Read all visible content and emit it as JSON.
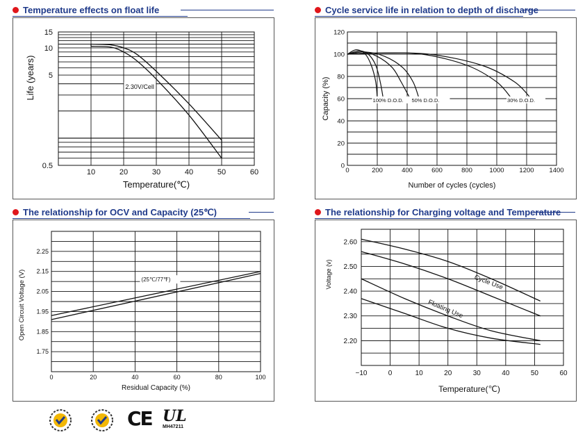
{
  "titles": {
    "c1": "Temperature effects on float life",
    "c2": "Cycle service life in relation to depth of discharge",
    "c3": "The relationship  for OCV and Capacity",
    "c3_suffix": "(25℃)",
    "c4": "The relationship for Charging voltage and Temperature"
  },
  "colors": {
    "title": "#1f3a8a",
    "bullet": "#e0161b",
    "grid": "#111111"
  },
  "chart_data": [
    {
      "type": "line",
      "title": "Temperature effects on float life",
      "xlabel": "Temperature(℃)",
      "ylabel": "Life (years)",
      "xlim": [
        0,
        60
      ],
      "ylim": [
        0.5,
        15
      ],
      "yscale": "log",
      "x_ticks": [
        "10",
        "20",
        "30",
        "40",
        "50",
        "60"
      ],
      "y_ticks": [
        "15",
        "10",
        "5",
        "0.5"
      ],
      "annotation": "2.30V/Cell",
      "series": [
        {
          "x": [
            10,
            16,
            20,
            24,
            30,
            40,
            50
          ],
          "y": [
            11.0,
            10.8,
            10.0,
            8.5,
            5.5,
            2.4,
            0.95
          ]
        },
        {
          "x": [
            10,
            16,
            20,
            24,
            30,
            40,
            50
          ],
          "y": [
            10.4,
            10.2,
            9.0,
            7.2,
            4.5,
            1.8,
            0.6
          ]
        }
      ]
    },
    {
      "type": "line",
      "title": "Cycle service life in relation to depth of discharge",
      "xlabel": "Number of cycles (cycles)",
      "ylabel": "Capacity (%)",
      "xlim": [
        0,
        1400
      ],
      "ylim": [
        0,
        120
      ],
      "x_ticks": [
        "0",
        "200",
        "400",
        "600",
        "800",
        "1000",
        "1200",
        "1400"
      ],
      "y_ticks": [
        "0",
        "20",
        "40",
        "60",
        "80",
        "100",
        "120"
      ],
      "annotations": [
        "100% D.O.D.",
        "50% D.O.D.",
        "30% D.O.D."
      ],
      "series": [
        {
          "x": [
            0,
            60,
            120,
            160,
            190,
            200
          ],
          "y": [
            100,
            104,
            100,
            90,
            75,
            60
          ]
        },
        {
          "x": [
            0,
            80,
            140,
            190,
            220,
            240
          ],
          "y": [
            100,
            103,
            100,
            90,
            75,
            60
          ]
        },
        {
          "x": [
            0,
            100,
            200,
            300,
            360,
            420
          ],
          "y": [
            100,
            102,
            98,
            88,
            75,
            60
          ]
        },
        {
          "x": [
            0,
            120,
            250,
            370,
            440,
            480
          ],
          "y": [
            100,
            102,
            98,
            88,
            75,
            60
          ]
        },
        {
          "x": [
            0,
            200,
            500,
            800,
            1000,
            1100
          ],
          "y": [
            100,
            101,
            100,
            90,
            75,
            60
          ]
        },
        {
          "x": [
            0,
            200,
            550,
            900,
            1120,
            1230
          ],
          "y": [
            100,
            101,
            100,
            90,
            75,
            60
          ]
        }
      ]
    },
    {
      "type": "line",
      "title": "The relationship  for OCV and Capacity (25℃)",
      "xlabel": "Residual Capacity (%)",
      "ylabel": "Open Circuit Voltage (V)",
      "xlim": [
        0,
        100
      ],
      "ylim": [
        1.65,
        2.35
      ],
      "x_ticks": [
        "0",
        "20",
        "40",
        "60",
        "80",
        "100"
      ],
      "y_ticks": [
        "1.75",
        "1.85",
        "1.95",
        "2.05",
        "2.15",
        "2.25"
      ],
      "annotation": "(25℃/77℉)",
      "series": [
        {
          "x": [
            0,
            100
          ],
          "y": [
            1.93,
            2.15
          ]
        },
        {
          "x": [
            0,
            100
          ],
          "y": [
            1.91,
            2.14
          ]
        }
      ]
    },
    {
      "type": "line",
      "title": "The relationship for Charging voltage and Temperature",
      "xlabel": "Temperature(℃)",
      "ylabel": "Voltage (v)",
      "xlim": [
        -10,
        60
      ],
      "ylim": [
        2.1,
        2.65
      ],
      "x_ticks": [
        "−10",
        "0",
        "10",
        "20",
        "30",
        "40",
        "50",
        "60"
      ],
      "y_ticks": [
        "2.60",
        "2.50",
        "2.40",
        "2.30",
        "2.20"
      ],
      "annotations": [
        "Cycle Use",
        "Floating Use"
      ],
      "series": [
        {
          "x": [
            -10,
            5,
            20,
            35,
            52
          ],
          "y": [
            2.61,
            2.57,
            2.52,
            2.45,
            2.36
          ]
        },
        {
          "x": [
            -10,
            5,
            20,
            35,
            52
          ],
          "y": [
            2.56,
            2.51,
            2.45,
            2.38,
            2.3
          ]
        },
        {
          "x": [
            -10,
            5,
            20,
            35,
            52
          ],
          "y": [
            2.45,
            2.37,
            2.3,
            2.24,
            2.2
          ]
        },
        {
          "x": [
            -10,
            5,
            20,
            35,
            52
          ],
          "y": [
            2.37,
            2.31,
            2.25,
            2.21,
            2.185
          ]
        }
      ]
    }
  ],
  "certifications": {
    "logo1_text": "ISO",
    "logo2_text": "ISO",
    "ce": "CE",
    "ul": "UL",
    "ul_code": "MH47211"
  }
}
